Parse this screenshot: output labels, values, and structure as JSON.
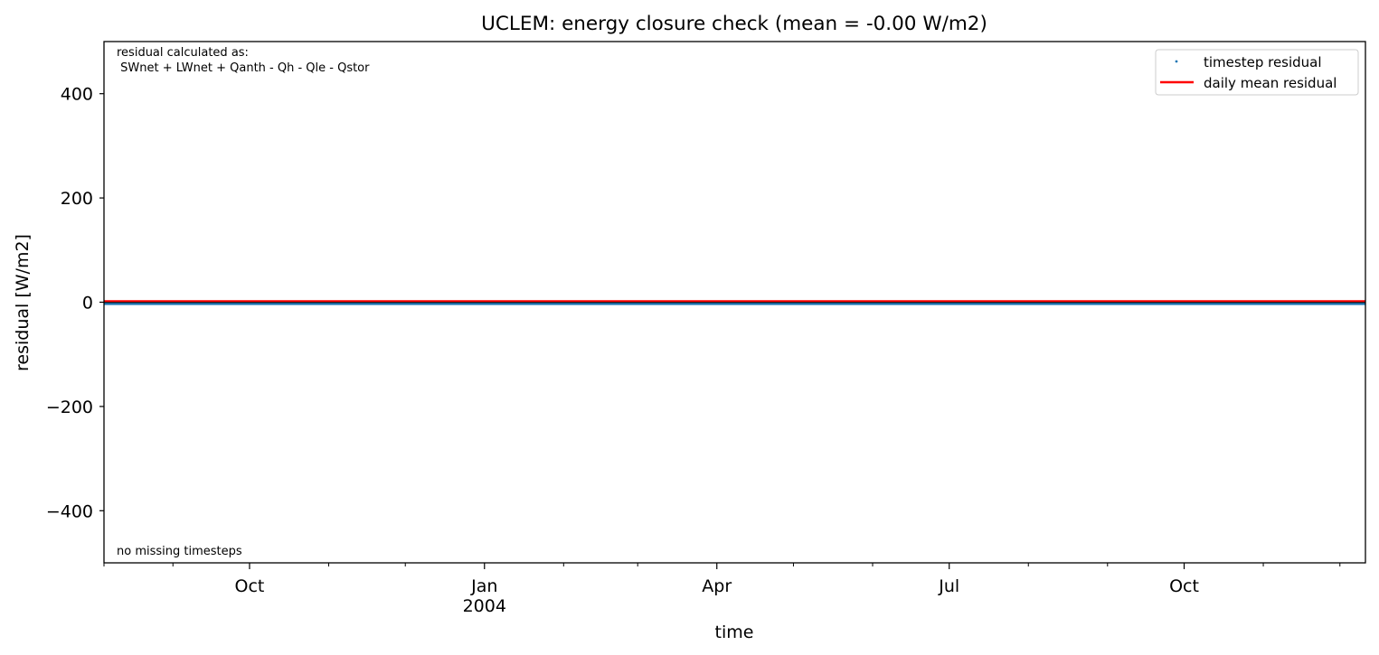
{
  "chart_data": {
    "type": "line",
    "title": "UCLEM: energy closure check (mean = -0.00 W/m2)",
    "xlabel": "time",
    "ylabel": "residual [W/m2]",
    "ylim": [
      -500,
      500
    ],
    "xlim": [
      "2003-08-05",
      "2004-12-11"
    ],
    "yticks": [
      {
        "value": 400,
        "label": "400"
      },
      {
        "value": 200,
        "label": "200"
      },
      {
        "value": 0,
        "label": "0"
      },
      {
        "value": -200,
        "label": "−200"
      },
      {
        "value": -400,
        "label": "−400"
      }
    ],
    "xticks_major": [
      {
        "date": "2003-10-01",
        "label": "Oct",
        "sublabel": ""
      },
      {
        "date": "2004-01-01",
        "label": "Jan",
        "sublabel": "2004"
      },
      {
        "date": "2004-04-01",
        "label": "Apr",
        "sublabel": ""
      },
      {
        "date": "2004-07-01",
        "label": "Jul",
        "sublabel": ""
      },
      {
        "date": "2004-10-01",
        "label": "Oct",
        "sublabel": ""
      }
    ],
    "xticks_minor": [
      "2003-08-05",
      "2003-09-01",
      "2003-11-01",
      "2003-12-01",
      "2004-02-01",
      "2004-03-01",
      "2004-05-01",
      "2004-06-01",
      "2004-08-01",
      "2004-09-01",
      "2004-11-01",
      "2004-12-01"
    ],
    "series": [
      {
        "name": "timestep residual",
        "style": "points",
        "color": "#1f77b4",
        "x": [
          "2003-08-05",
          "2004-12-11"
        ],
        "y": [
          0,
          0
        ]
      },
      {
        "name": "daily mean residual",
        "style": "line",
        "color": "#ff0000",
        "x": [
          "2003-08-05",
          "2004-12-11"
        ],
        "y": [
          0,
          0
        ]
      }
    ],
    "legend": "top-right",
    "grid": false,
    "zero_line_color": "#000000",
    "annotations": {
      "formula_line1": "residual calculated as:",
      "formula_line2": " SWnet + LWnet + Qanth - Qh - Qle - Qstor",
      "missing_note": "no missing timesteps"
    }
  }
}
